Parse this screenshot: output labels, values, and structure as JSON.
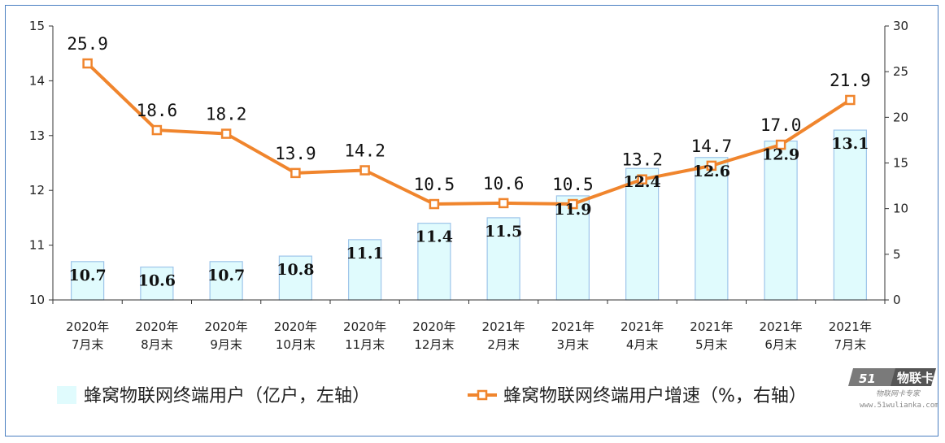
{
  "chart_data": {
    "type": "bar+line",
    "categories": [
      [
        "2020年",
        "7月末"
      ],
      [
        "2020年",
        "8月末"
      ],
      [
        "2020年",
        "9月末"
      ],
      [
        "2020年",
        "10月末"
      ],
      [
        "2020年",
        "11月末"
      ],
      [
        "2020年",
        "12月末"
      ],
      [
        "2021年",
        "2月末"
      ],
      [
        "2021年",
        "3月末"
      ],
      [
        "2021年",
        "4月末"
      ],
      [
        "2021年",
        "5月末"
      ],
      [
        "2021年",
        "6月末"
      ],
      [
        "2021年",
        "7月末"
      ]
    ],
    "bar_series": {
      "name": "蜂窝物联网终端用户（亿户，左轴）",
      "values": [
        10.7,
        10.6,
        10.7,
        10.8,
        11.1,
        11.4,
        11.5,
        11.9,
        12.4,
        12.6,
        12.9,
        13.1
      ],
      "labels": [
        "10.7",
        "10.6",
        "10.7",
        "10.8",
        "11.1",
        "11.4",
        "11.5",
        "11.9",
        "12.4",
        "12.6",
        "12.9",
        "13.1"
      ],
      "axis": "left",
      "fill": "#e0fbfd",
      "stroke": "#9ec5ea"
    },
    "line_series": {
      "name": "蜂窝物联网终端用户增速（%，右轴）",
      "values": [
        25.9,
        18.6,
        18.2,
        13.9,
        14.2,
        10.5,
        10.6,
        10.5,
        13.2,
        14.7,
        17.0,
        21.9
      ],
      "labels": [
        "25.9",
        "18.6",
        "18.2",
        "13.9",
        "14.2",
        "10.5",
        "10.6",
        "10.5",
        "13.2",
        "14.7",
        "17.0",
        "21.9"
      ],
      "axis": "right",
      "color": "#f0852d",
      "marker": "square-hollow"
    },
    "y_left": {
      "range": [
        10,
        15
      ],
      "ticks": [
        "10",
        "11",
        "12",
        "13",
        "14",
        "15"
      ]
    },
    "y_right": {
      "range": [
        0,
        30
      ],
      "ticks": [
        "0",
        "5",
        "10",
        "15",
        "20",
        "25",
        "30"
      ]
    },
    "grid": false,
    "legend_position": "bottom"
  },
  "watermark": {
    "logo_text": "51",
    "brand": "物联卡",
    "tagline": "物联网卡专家",
    "url": "www.51wulianka.com"
  }
}
